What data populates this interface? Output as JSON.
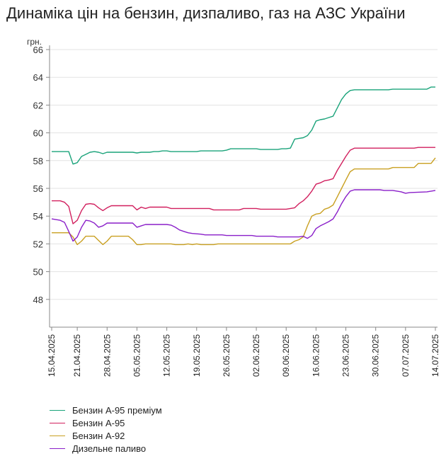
{
  "title": "Динаміка цін на бензин, дизпаливо, газ на АЗС України",
  "chart_data": {
    "type": "line",
    "ylabel": "грн.",
    "ylim": [
      46,
      66
    ],
    "y_ticks": [
      48,
      50,
      52,
      54,
      56,
      58,
      60,
      62,
      64,
      66
    ],
    "x_range": [
      "2025-04-15",
      "2025-07-14"
    ],
    "x_tick_labels": [
      "15.04.2025",
      "21.04.2025",
      "28.04.2025",
      "05.05.2025",
      "12.05.2025",
      "19.05.2025",
      "26.05.2025",
      "02.06.2025",
      "09.06.2025",
      "16.06.2025",
      "23.06.2025",
      "30.06.2025",
      "07.07.2025",
      "14.07.2025"
    ],
    "grid": "horizontal",
    "legend_position": "bottom-left",
    "series": [
      {
        "name": "Бензин А-95 преміум",
        "color": "#1aa37a",
        "points": [
          [
            "2025-04-15",
            58.65
          ],
          [
            "2025-04-18",
            58.65
          ],
          [
            "2025-04-19",
            58.65
          ],
          [
            "2025-04-20",
            57.75
          ],
          [
            "2025-04-21",
            57.85
          ],
          [
            "2025-04-22",
            58.3
          ],
          [
            "2025-04-23",
            58.45
          ],
          [
            "2025-04-24",
            58.6
          ],
          [
            "2025-04-25",
            58.65
          ],
          [
            "2025-04-26",
            58.6
          ],
          [
            "2025-04-27",
            58.5
          ],
          [
            "2025-04-28",
            58.6
          ],
          [
            "2025-05-04",
            58.6
          ],
          [
            "2025-05-05",
            58.55
          ],
          [
            "2025-05-06",
            58.6
          ],
          [
            "2025-05-08",
            58.6
          ],
          [
            "2025-05-09",
            58.65
          ],
          [
            "2025-05-10",
            58.65
          ],
          [
            "2025-05-11",
            58.7
          ],
          [
            "2025-05-12",
            58.7
          ],
          [
            "2025-05-13",
            58.65
          ],
          [
            "2025-05-19",
            58.65
          ],
          [
            "2025-05-20",
            58.7
          ],
          [
            "2025-05-25",
            58.7
          ],
          [
            "2025-05-26",
            58.75
          ],
          [
            "2025-05-27",
            58.85
          ],
          [
            "2025-06-02",
            58.85
          ],
          [
            "2025-06-03",
            58.8
          ],
          [
            "2025-06-07",
            58.8
          ],
          [
            "2025-06-08",
            58.85
          ],
          [
            "2025-06-09",
            58.85
          ],
          [
            "2025-06-10",
            58.9
          ],
          [
            "2025-06-11",
            59.55
          ],
          [
            "2025-06-12",
            59.6
          ],
          [
            "2025-06-13",
            59.65
          ],
          [
            "2025-06-14",
            59.8
          ],
          [
            "2025-06-15",
            60.2
          ],
          [
            "2025-06-16",
            60.85
          ],
          [
            "2025-06-17",
            60.95
          ],
          [
            "2025-06-18",
            61.0
          ],
          [
            "2025-06-19",
            61.1
          ],
          [
            "2025-06-20",
            61.2
          ],
          [
            "2025-06-21",
            61.8
          ],
          [
            "2025-06-22",
            62.4
          ],
          [
            "2025-06-23",
            62.8
          ],
          [
            "2025-06-24",
            63.05
          ],
          [
            "2025-06-25",
            63.1
          ],
          [
            "2025-07-03",
            63.1
          ],
          [
            "2025-07-04",
            63.15
          ],
          [
            "2025-07-12",
            63.15
          ],
          [
            "2025-07-13",
            63.3
          ],
          [
            "2025-07-14",
            63.3
          ]
        ]
      },
      {
        "name": "Бензин А-95",
        "color": "#d11f5e",
        "points": [
          [
            "2025-04-15",
            55.1
          ],
          [
            "2025-04-17",
            55.1
          ],
          [
            "2025-04-18",
            55.0
          ],
          [
            "2025-04-19",
            54.7
          ],
          [
            "2025-04-20",
            53.45
          ],
          [
            "2025-04-21",
            53.7
          ],
          [
            "2025-04-22",
            54.4
          ],
          [
            "2025-04-23",
            54.85
          ],
          [
            "2025-04-24",
            54.9
          ],
          [
            "2025-04-25",
            54.85
          ],
          [
            "2025-04-26",
            54.6
          ],
          [
            "2025-04-27",
            54.4
          ],
          [
            "2025-04-28",
            54.6
          ],
          [
            "2025-04-29",
            54.75
          ],
          [
            "2025-05-04",
            54.75
          ],
          [
            "2025-05-05",
            54.45
          ],
          [
            "2025-05-06",
            54.65
          ],
          [
            "2025-05-07",
            54.55
          ],
          [
            "2025-05-08",
            54.65
          ],
          [
            "2025-05-12",
            54.65
          ],
          [
            "2025-05-13",
            54.55
          ],
          [
            "2025-05-22",
            54.55
          ],
          [
            "2025-05-23",
            54.45
          ],
          [
            "2025-05-29",
            54.45
          ],
          [
            "2025-05-30",
            54.55
          ],
          [
            "2025-06-02",
            54.55
          ],
          [
            "2025-06-03",
            54.5
          ],
          [
            "2025-06-09",
            54.5
          ],
          [
            "2025-06-10",
            54.55
          ],
          [
            "2025-06-11",
            54.6
          ],
          [
            "2025-06-12",
            54.9
          ],
          [
            "2025-06-13",
            55.1
          ],
          [
            "2025-06-14",
            55.4
          ],
          [
            "2025-06-15",
            55.8
          ],
          [
            "2025-06-16",
            56.3
          ],
          [
            "2025-06-17",
            56.4
          ],
          [
            "2025-06-18",
            56.55
          ],
          [
            "2025-06-19",
            56.6
          ],
          [
            "2025-06-20",
            56.7
          ],
          [
            "2025-06-21",
            57.3
          ],
          [
            "2025-06-22",
            57.8
          ],
          [
            "2025-06-23",
            58.3
          ],
          [
            "2025-06-24",
            58.75
          ],
          [
            "2025-06-25",
            58.9
          ],
          [
            "2025-07-09",
            58.9
          ],
          [
            "2025-07-10",
            58.95
          ],
          [
            "2025-07-14",
            58.95
          ]
        ]
      },
      {
        "name": "Бензин А-92",
        "color": "#c9a021",
        "points": [
          [
            "2025-04-15",
            52.8
          ],
          [
            "2025-04-19",
            52.8
          ],
          [
            "2025-04-20",
            52.5
          ],
          [
            "2025-04-21",
            51.95
          ],
          [
            "2025-04-22",
            52.2
          ],
          [
            "2025-04-23",
            52.55
          ],
          [
            "2025-04-25",
            52.55
          ],
          [
            "2025-04-26",
            52.25
          ],
          [
            "2025-04-27",
            51.95
          ],
          [
            "2025-04-28",
            52.2
          ],
          [
            "2025-04-29",
            52.55
          ],
          [
            "2025-05-03",
            52.55
          ],
          [
            "2025-05-04",
            52.3
          ],
          [
            "2025-05-05",
            51.95
          ],
          [
            "2025-05-06",
            51.95
          ],
          [
            "2025-05-07",
            52.0
          ],
          [
            "2025-05-13",
            52.0
          ],
          [
            "2025-05-14",
            51.95
          ],
          [
            "2025-05-16",
            51.95
          ],
          [
            "2025-05-17",
            52.0
          ],
          [
            "2025-05-18",
            51.95
          ],
          [
            "2025-05-19",
            52.0
          ],
          [
            "2025-05-20",
            51.95
          ],
          [
            "2025-05-23",
            51.95
          ],
          [
            "2025-05-24",
            52.0
          ],
          [
            "2025-06-09",
            52.0
          ],
          [
            "2025-06-10",
            52.0
          ],
          [
            "2025-06-11",
            52.2
          ],
          [
            "2025-06-12",
            52.3
          ],
          [
            "2025-06-13",
            52.5
          ],
          [
            "2025-06-14",
            53.3
          ],
          [
            "2025-06-15",
            54.0
          ],
          [
            "2025-06-16",
            54.15
          ],
          [
            "2025-06-17",
            54.2
          ],
          [
            "2025-06-18",
            54.5
          ],
          [
            "2025-06-19",
            54.6
          ],
          [
            "2025-06-20",
            54.8
          ],
          [
            "2025-06-21",
            55.4
          ],
          [
            "2025-06-22",
            56.0
          ],
          [
            "2025-06-23",
            56.6
          ],
          [
            "2025-06-24",
            57.2
          ],
          [
            "2025-06-25",
            57.4
          ],
          [
            "2025-07-03",
            57.4
          ],
          [
            "2025-07-04",
            57.5
          ],
          [
            "2025-07-09",
            57.5
          ],
          [
            "2025-07-10",
            57.8
          ],
          [
            "2025-07-13",
            57.8
          ],
          [
            "2025-07-14",
            58.2
          ]
        ]
      },
      {
        "name": "Дизельне паливо",
        "color": "#8a1fc9",
        "points": [
          [
            "2025-04-15",
            53.8
          ],
          [
            "2025-04-17",
            53.7
          ],
          [
            "2025-04-18",
            53.55
          ],
          [
            "2025-04-19",
            52.9
          ],
          [
            "2025-04-20",
            52.2
          ],
          [
            "2025-04-21",
            52.5
          ],
          [
            "2025-04-22",
            53.2
          ],
          [
            "2025-04-23",
            53.7
          ],
          [
            "2025-04-24",
            53.65
          ],
          [
            "2025-04-25",
            53.5
          ],
          [
            "2025-04-26",
            53.2
          ],
          [
            "2025-04-27",
            53.3
          ],
          [
            "2025-04-28",
            53.5
          ],
          [
            "2025-05-04",
            53.5
          ],
          [
            "2025-05-05",
            53.2
          ],
          [
            "2025-05-06",
            53.3
          ],
          [
            "2025-05-07",
            53.4
          ],
          [
            "2025-05-12",
            53.4
          ],
          [
            "2025-05-13",
            53.35
          ],
          [
            "2025-05-14",
            53.2
          ],
          [
            "2025-05-15",
            53.0
          ],
          [
            "2025-05-16",
            52.9
          ],
          [
            "2025-05-17",
            52.8
          ],
          [
            "2025-05-18",
            52.75
          ],
          [
            "2025-05-20",
            52.7
          ],
          [
            "2025-05-21",
            52.65
          ],
          [
            "2025-05-25",
            52.65
          ],
          [
            "2025-05-26",
            52.6
          ],
          [
            "2025-06-01",
            52.6
          ],
          [
            "2025-06-02",
            52.55
          ],
          [
            "2025-06-06",
            52.55
          ],
          [
            "2025-06-07",
            52.5
          ],
          [
            "2025-06-12",
            52.5
          ],
          [
            "2025-06-13",
            52.55
          ],
          [
            "2025-06-14",
            52.4
          ],
          [
            "2025-06-15",
            52.6
          ],
          [
            "2025-06-16",
            53.1
          ],
          [
            "2025-06-17",
            53.3
          ],
          [
            "2025-06-18",
            53.45
          ],
          [
            "2025-06-19",
            53.6
          ],
          [
            "2025-06-20",
            53.8
          ],
          [
            "2025-06-21",
            54.3
          ],
          [
            "2025-06-22",
            54.9
          ],
          [
            "2025-06-23",
            55.4
          ],
          [
            "2025-06-24",
            55.8
          ],
          [
            "2025-06-25",
            55.9
          ],
          [
            "2025-07-01",
            55.9
          ],
          [
            "2025-07-02",
            55.85
          ],
          [
            "2025-07-04",
            55.85
          ],
          [
            "2025-07-05",
            55.8
          ],
          [
            "2025-07-06",
            55.75
          ],
          [
            "2025-07-07",
            55.65
          ],
          [
            "2025-07-08",
            55.7
          ],
          [
            "2025-07-12",
            55.75
          ],
          [
            "2025-07-13",
            55.8
          ],
          [
            "2025-07-14",
            55.85
          ]
        ]
      }
    ]
  }
}
